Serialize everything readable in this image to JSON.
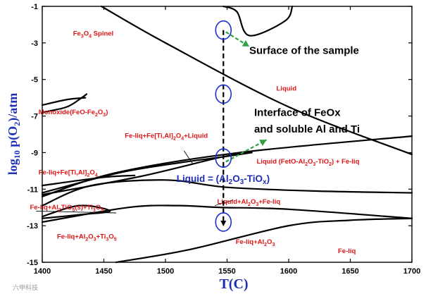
{
  "chart_data": {
    "type": "phase_diagram",
    "title": "",
    "xlabel": "T(C)",
    "ylabel": "log10 p(O2)/atm",
    "ylabel_parts": {
      "log": "log",
      "log_sub": "10",
      "p": " p(O",
      "o_sub": "2",
      "rest": ")/atm"
    },
    "xlim": [
      1400,
      1700
    ],
    "ylim": [
      -15,
      -1
    ],
    "x_ticks": [
      1400,
      1450,
      1500,
      1550,
      1600,
      1650,
      1700
    ],
    "y_ticks": [
      -1,
      -3,
      -5,
      -7,
      -9,
      -11,
      -13,
      -15
    ],
    "regions": [
      {
        "label": "Fe3O4 Spinel",
        "parts": [
          [
            "Fe",
            ""
          ],
          [
            "3",
            "sub"
          ],
          [
            "O",
            ""
          ],
          [
            "4",
            "sub"
          ],
          [
            " Spinel",
            ""
          ]
        ],
        "x": 1425,
        "y": -2.6
      },
      {
        "label": "Liquid",
        "parts": [
          [
            "Liquid",
            ""
          ]
        ],
        "x": 1590,
        "y": -5.6
      },
      {
        "label": "Monoxide(FeO-Fe2O3)",
        "parts": [
          [
            "Monoxide(FeO-Fe",
            ""
          ],
          [
            "2",
            "sub"
          ],
          [
            "O",
            ""
          ],
          [
            "3",
            "sub"
          ],
          [
            ")",
            ""
          ]
        ],
        "x": 1397,
        "y": -6.9
      },
      {
        "label": "Fe-liq+Fe[Ti,Al]2O4+Liquid",
        "parts": [
          [
            "Fe-liq+Fe[Ti,Al]",
            ""
          ],
          [
            "2",
            "sub"
          ],
          [
            "O",
            ""
          ],
          [
            "4",
            "sub"
          ],
          [
            "+Liquid",
            ""
          ]
        ],
        "x": 1467,
        "y": -8.2
      },
      {
        "label": "Liquid (FetO-Al2O3-TiO2) + Fe-liq",
        "parts": [
          [
            "Liquid (FetO-Al",
            ""
          ],
          [
            "2",
            "sub"
          ],
          [
            "O",
            ""
          ],
          [
            "3",
            "sub"
          ],
          [
            "-TiO",
            ""
          ],
          [
            "2",
            "sub"
          ],
          [
            ") + Fe-liq",
            ""
          ]
        ],
        "x": 1574,
        "y": -9.6
      },
      {
        "label": "Fe-liq+Fe[Ti,Al]2O4",
        "parts": [
          [
            "Fe-liq+Fe[Ti,Al]",
            ""
          ],
          [
            "2",
            "sub"
          ],
          [
            "O",
            ""
          ],
          [
            "4",
            "sub"
          ]
        ],
        "x": 1397,
        "y": -10.2
      },
      {
        "label": "Liquid+Al2O3+Fe-liq",
        "parts": [
          [
            "Liquid+Al",
            ""
          ],
          [
            "2",
            "sub"
          ],
          [
            "O",
            ""
          ],
          [
            "3",
            "sub"
          ],
          [
            "+Fe-liq",
            ""
          ]
        ],
        "x": 1542,
        "y": -11.8
      },
      {
        "label": "Fe-liq+Al2TiO5(s)+Ti3O5",
        "parts": [
          [
            "Fe-liq+Al",
            ""
          ],
          [
            "2",
            "sub"
          ],
          [
            "TiO",
            ""
          ],
          [
            "5",
            "sub"
          ],
          [
            "(s)+Ti",
            ""
          ],
          [
            "3",
            "sub"
          ],
          [
            "O",
            ""
          ],
          [
            "5",
            "sub"
          ]
        ],
        "x": 1390,
        "y": -12.1
      },
      {
        "label": "Fe-liq+Al2O3+Ti3O5",
        "parts": [
          [
            "Fe-liq+Al",
            ""
          ],
          [
            "2",
            "sub"
          ],
          [
            "O",
            ""
          ],
          [
            "3",
            "sub"
          ],
          [
            "+Ti",
            ""
          ],
          [
            "3",
            "sub"
          ],
          [
            "O",
            ""
          ],
          [
            "5",
            "sub"
          ]
        ],
        "x": 1412,
        "y": -13.7
      },
      {
        "label": "Fe-liq+Al2O3",
        "parts": [
          [
            "Fe-liq+Al",
            ""
          ],
          [
            "2",
            "sub"
          ],
          [
            "O",
            ""
          ],
          [
            "3",
            "sub"
          ]
        ],
        "x": 1557,
        "y": -14.0
      },
      {
        "label": "Fe-liq",
        "parts": [
          [
            "Fe-liq",
            ""
          ]
        ],
        "x": 1640,
        "y": -14.5
      }
    ],
    "boundaries": [
      [
        [
          1448,
          -1.0
        ],
        [
          1500,
          -3.0
        ],
        [
          1600,
          -6.5
        ],
        [
          1700,
          -9.1
        ]
      ],
      [
        [
          1400,
          -6.4
        ],
        [
          1420,
          -6.1
        ],
        [
          1435,
          -6.0
        ]
      ],
      [
        [
          1400,
          -6.8
        ],
        [
          1420,
          -6.5
        ],
        [
          1432,
          -6.0
        ],
        [
          1436,
          -5.8
        ]
      ],
      [
        [
          1400,
          -11.4
        ],
        [
          1460,
          -10.1
        ],
        [
          1560,
          -9.0
        ],
        [
          1700,
          -8.1
        ]
      ],
      [
        [
          1400,
          -11.2
        ],
        [
          1470,
          -10.0
        ],
        [
          1550,
          -9.2
        ],
        [
          1570,
          -9.0
        ],
        [
          1545,
          -9.25
        ],
        [
          1480,
          -10.3
        ],
        [
          1400,
          -11.3
        ]
      ],
      [
        [
          1400,
          -11.9
        ],
        [
          1440,
          -10.8
        ],
        [
          1500,
          -10.5
        ],
        [
          1550,
          -10.9
        ],
        [
          1620,
          -11.1
        ],
        [
          1700,
          -11.2
        ]
      ],
      [
        [
          1400,
          -12.5
        ],
        [
          1430,
          -11.9
        ],
        [
          1455,
          -12.2
        ],
        [
          1430,
          -12.4
        ],
        [
          1400,
          -12.6
        ]
      ],
      [
        [
          1400,
          -12.8
        ],
        [
          1470,
          -12.0
        ],
        [
          1510,
          -11.9
        ],
        [
          1545,
          -12.0
        ],
        [
          1600,
          -12.1
        ],
        [
          1700,
          -12.6
        ]
      ],
      [
        [
          1460,
          -15.0
        ],
        [
          1520,
          -14.3
        ],
        [
          1600,
          -13.0
        ],
        [
          1650,
          -12.7
        ],
        [
          1700,
          -12.6
        ]
      ],
      [
        [
          1547,
          -1.0
        ],
        [
          1558,
          -1.3
        ],
        [
          1568,
          -2.6
        ],
        [
          1597,
          -1.8
        ],
        [
          1603,
          -1.0
        ]
      ],
      [
        [
          1400,
          -10.8
        ],
        [
          1450,
          -10.35
        ],
        [
          1475,
          -10.25
        ]
      ]
    ],
    "thin_lines": [
      [
        [
          1395,
          -12.2
        ],
        [
          1460,
          -12.3
        ]
      ],
      [
        [
          1515,
          -8.9
        ],
        [
          1522,
          -9.6
        ]
      ],
      [
        [
          1555,
          -11.6
        ],
        [
          1540,
          -11.9
        ]
      ]
    ],
    "markers": [
      {
        "name": "marker-top",
        "x": 1547,
        "y": -2.3
      },
      {
        "name": "marker-mid",
        "x": 1547,
        "y": -5.8
      },
      {
        "name": "marker-liquid",
        "x": 1547,
        "y": -9.3
      },
      {
        "name": "marker-bottom",
        "x": 1547,
        "y": -12.8
      }
    ],
    "dashed_path": {
      "x": 1547,
      "y_start": -2.3,
      "y_end": -12.8
    },
    "annotations": [
      {
        "text": "Surface of the sample",
        "x": 1568,
        "y": -3.6
      },
      {
        "text": "Interface of FeOx",
        "x": 1572,
        "y": -7.0
      },
      {
        "text": "and soluble Al and Ti",
        "x": 1572,
        "y": -7.9
      }
    ],
    "arrows": [
      {
        "from": [
          1549,
          -2.4
        ],
        "to": [
          1568,
          -3.2
        ]
      },
      {
        "from": [
          1549,
          -9.5
        ],
        "to": [
          1582,
          -8.3
        ]
      }
    ],
    "liquid_label": {
      "x": 1509,
      "y": -10.6,
      "parts": [
        [
          "Liquid = (Al",
          ""
        ],
        [
          "2",
          "sub"
        ],
        [
          "O",
          ""
        ],
        [
          "3",
          "sub"
        ],
        [
          "-TiO",
          ""
        ],
        [
          "x",
          "sub"
        ],
        [
          ")",
          ""
        ]
      ]
    }
  },
  "watermark": "六甲科技"
}
